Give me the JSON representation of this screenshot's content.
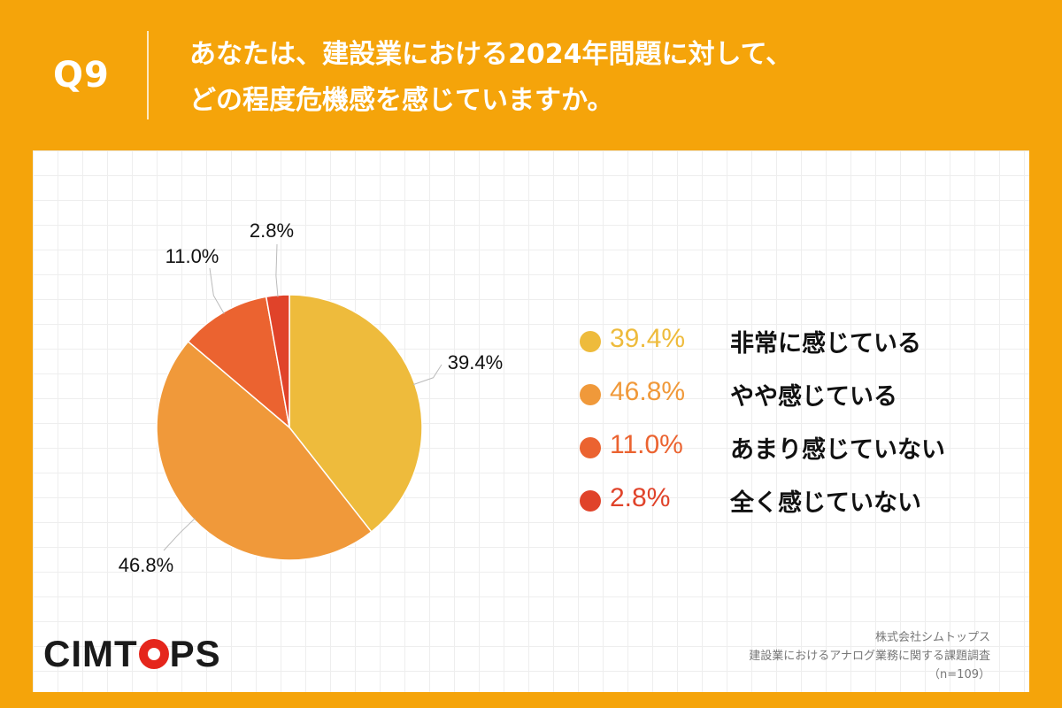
{
  "header": {
    "question_number": "Q9",
    "question_line1": "あなたは、建設業における2024年問題に対して、",
    "question_line2": "どの程度危機感を感じていますか。"
  },
  "chart_data": {
    "type": "pie",
    "title": "あなたは、建設業における2024年問題に対して、どの程度危機感を感じていますか。",
    "categories": [
      "非常に感じている",
      "やや感じている",
      "あまり感じていない",
      "全く感じていない"
    ],
    "values": [
      39.4,
      46.8,
      11.0,
      2.8
    ],
    "value_labels": [
      "39.4%",
      "46.8%",
      "11.0%",
      "2.8%"
    ],
    "colors": [
      "#EEBB3C",
      "#F0993A",
      "#EB6330",
      "#E0432A"
    ],
    "legend_placement": "right",
    "start": "12 o'clock, clockwise"
  },
  "logo": {
    "text_before": "CIMT",
    "text_after": "PS"
  },
  "source": {
    "line1": "株式会社シムトップス",
    "line2": "建設業におけるアナログ業務に関する課題調査",
    "line3": "（n=109）"
  }
}
